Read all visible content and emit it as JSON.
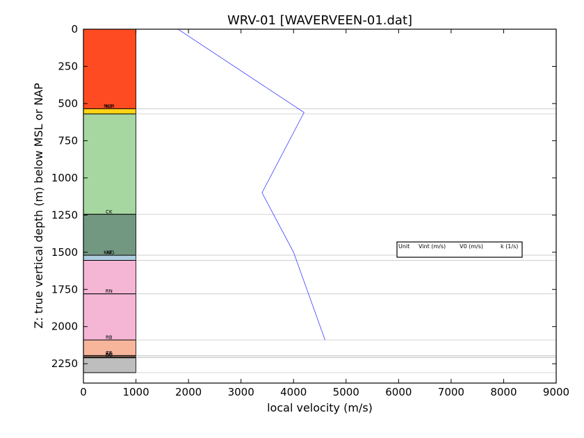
{
  "chart_data": {
    "type": "line",
    "title": "WRV-01 [WAVERVEEN-01.dat]",
    "xlabel": "local velocity (m/s)",
    "ylabel": "Z: true vertical depth (m) below MSL or NAP",
    "xlim": [
      0,
      9000
    ],
    "ylim": [
      2380,
      0
    ],
    "y_inverted": true,
    "grid": false,
    "xticks": [
      0,
      1000,
      2000,
      3000,
      4000,
      5000,
      6000,
      7000,
      8000,
      9000
    ],
    "yticks": [
      0,
      250,
      500,
      750,
      1000,
      1250,
      1500,
      1750,
      2000,
      2250
    ],
    "series": [
      {
        "color": "#0000ff",
        "x": [
          1800,
          4200,
          3400,
          4000,
          4600
        ],
        "y": [
          0,
          560,
          1100,
          1500,
          2090
        ]
      }
    ],
    "units": [
      {
        "label": "",
        "top": 0,
        "bottom": 535,
        "color": "#ff4b22"
      },
      {
        "label": "NU",
        "top": 535,
        "bottom": 535,
        "color": "#ff4b22"
      },
      {
        "label": "NLM",
        "top": 535,
        "bottom": 570,
        "color": "#ffd414"
      },
      {
        "label": "",
        "top": 570,
        "bottom": 1245,
        "color": "#a6d7a1"
      },
      {
        "label": "CK",
        "top": 1245,
        "bottom": 1520,
        "color": "#739882"
      },
      {
        "label": "KNG",
        "top": 1520,
        "bottom": 1520,
        "color": "#739882"
      },
      {
        "label": "AT",
        "top": 1520,
        "bottom": 1555,
        "color": "#aecde0"
      },
      {
        "label": "",
        "top": 1555,
        "bottom": 1780,
        "color": "#f5b6d6"
      },
      {
        "label": "RN",
        "top": 1780,
        "bottom": 2090,
        "color": "#f5b6d6"
      },
      {
        "label": "RB",
        "top": 2090,
        "bottom": 2195,
        "color": "#f7b59c"
      },
      {
        "label": "ZE",
        "top": 2195,
        "bottom": 2203,
        "color": "#e8a58c"
      },
      {
        "label": "RO",
        "top": 2203,
        "bottom": 2210,
        "color": "#d99a80"
      },
      {
        "label": "DC",
        "top": 2210,
        "bottom": 2310,
        "color": "#bebebe"
      }
    ],
    "unit_bar_width": 1000,
    "boundaries": [
      535,
      570,
      1245,
      1520,
      1555,
      1780,
      2090,
      2195,
      2203,
      2210,
      2310
    ],
    "legend": {
      "placement": "right",
      "headers": [
        "Unit",
        "Vint (m/s)",
        "V0 (m/s)",
        "k (1/s)"
      ]
    }
  }
}
